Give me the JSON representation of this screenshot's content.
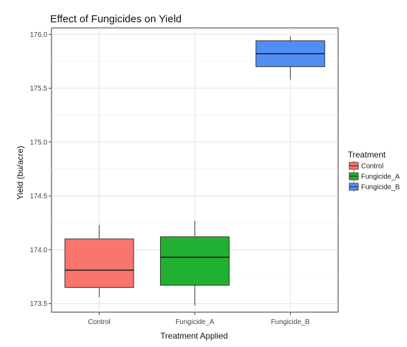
{
  "chart_data": {
    "type": "box",
    "title": "Effect of Fungicides on Yield",
    "xlabel": "Treatment Applied",
    "ylabel": "Yield (bu/acre)",
    "categories": [
      "Control",
      "Fungicide_A",
      "Fungicide_B"
    ],
    "ylim": [
      173.42,
      176.06
    ],
    "yticks": [
      "173.5",
      "174.0",
      "174.5",
      "175.0",
      "175.5",
      "176.0"
    ],
    "grid": true,
    "legend_title": "Treatment",
    "legend_position": "right",
    "series": [
      {
        "name": "Control",
        "color": "#f8766d",
        "min": 173.56,
        "q1": 173.65,
        "median": 173.81,
        "q3": 174.1,
        "max": 174.23
      },
      {
        "name": "Fungicide_A",
        "color": "#22b033",
        "min": 173.48,
        "q1": 173.67,
        "median": 173.93,
        "q3": 174.12,
        "max": 174.27
      },
      {
        "name": "Fungicide_B",
        "color": "#4f8ef7",
        "min": 175.58,
        "q1": 175.7,
        "median": 175.82,
        "q3": 175.94,
        "max": 175.98
      }
    ]
  }
}
